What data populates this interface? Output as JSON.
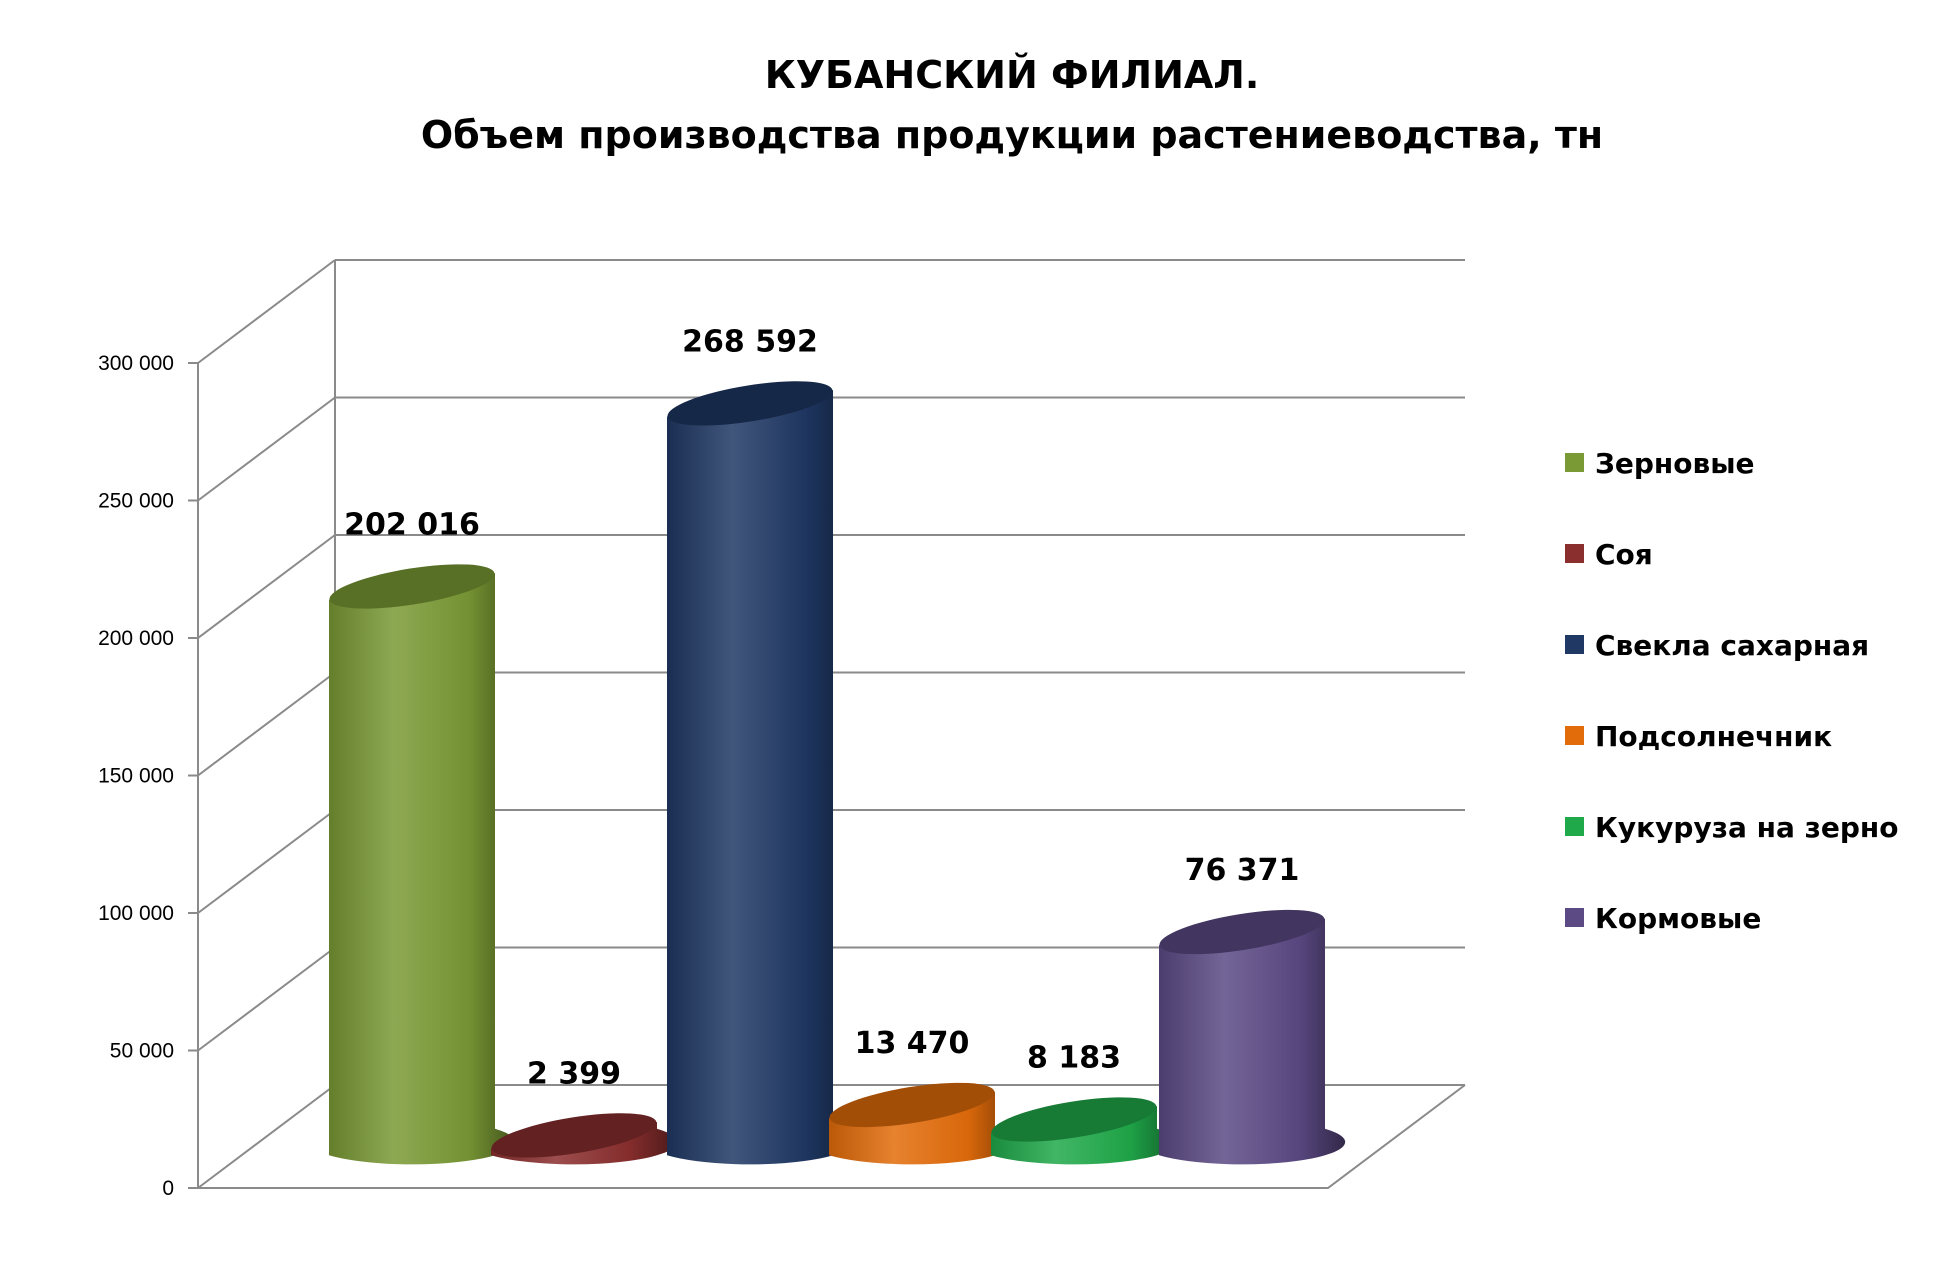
{
  "chart_data": {
    "type": "bar",
    "title": "КУБАНСКИЙ ФИЛИАЛ.",
    "subtitle": "Объем производства продукции растениеводства, тн",
    "categories": [
      "Зерновые",
      "Соя",
      "Свекла сахарная",
      "Подсолнечник",
      "Кукуруза на зерно",
      "Кормовые"
    ],
    "values": [
      202016,
      2399,
      268592,
      13470,
      8183,
      76371
    ],
    "data_labels": [
      "202 016",
      "2 399",
      "268 592",
      "13 470",
      "8 183",
      "76 371"
    ],
    "colors": [
      "#7a9a35",
      "#8b2e2e",
      "#1f3864",
      "#e36c0a",
      "#20a94a",
      "#5c4a85"
    ],
    "ylim": [
      0,
      300000
    ],
    "yticks": [
      0,
      50000,
      100000,
      150000,
      200000,
      250000,
      300000
    ],
    "ytick_labels": [
      "0",
      "50 000",
      "100 000",
      "150 000",
      "200 000",
      "250 000",
      "300 000"
    ],
    "grid": true,
    "legend_position": "right",
    "style": "3d-cylinder"
  }
}
